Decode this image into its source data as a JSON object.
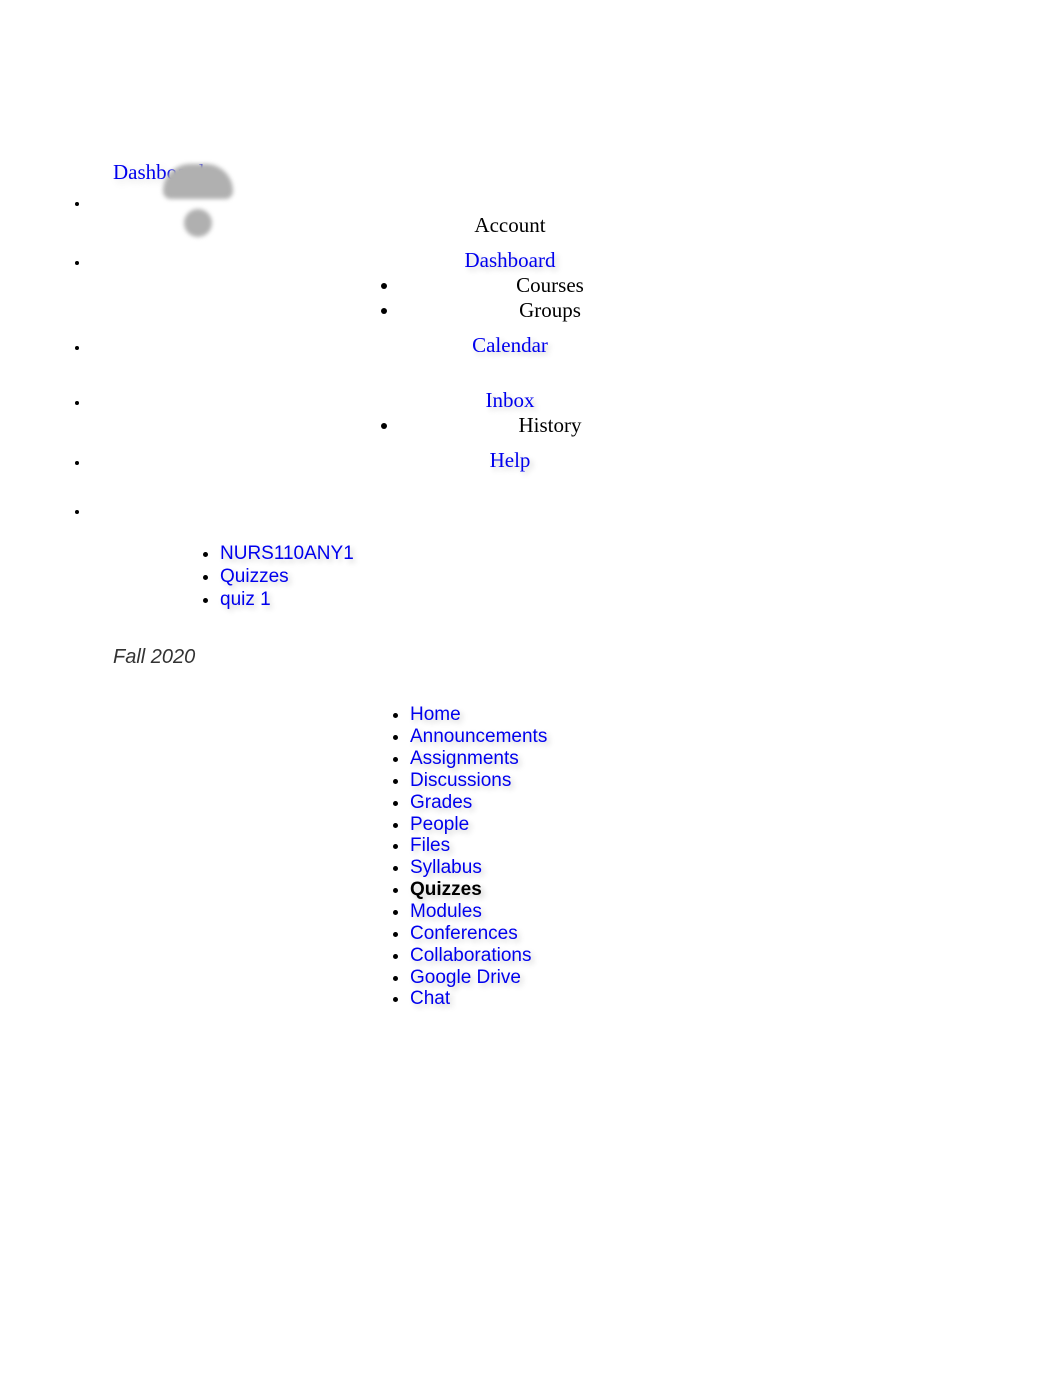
{
  "top_dashboard": "Dashboard",
  "global_nav": {
    "account": "Account",
    "dashboard": "Dashboard",
    "courses": "Courses",
    "groups": "Groups",
    "calendar": "Calendar",
    "inbox": "Inbox",
    "history": "History",
    "help": "Help"
  },
  "breadcrumb": {
    "course": "NURS110ANY1",
    "section": "Quizzes",
    "item": "quiz 1"
  },
  "term": "Fall 2020",
  "course_nav": {
    "home": "Home",
    "announcements": "Announcements",
    "assignments": "Assignments",
    "discussions": "Discussions",
    "grades": "Grades",
    "people": "People",
    "files": "Files",
    "syllabus": "Syllabus",
    "quizzes": "Quizzes",
    "modules": "Modules",
    "conferences": "Conferences",
    "collaborations": "Collaborations",
    "google_drive": "Google Drive",
    "chat": "Chat"
  },
  "colors": {
    "link": "#0000ee",
    "text": "#000000",
    "background": "#ffffff",
    "avatar": "#b0b0b0"
  }
}
